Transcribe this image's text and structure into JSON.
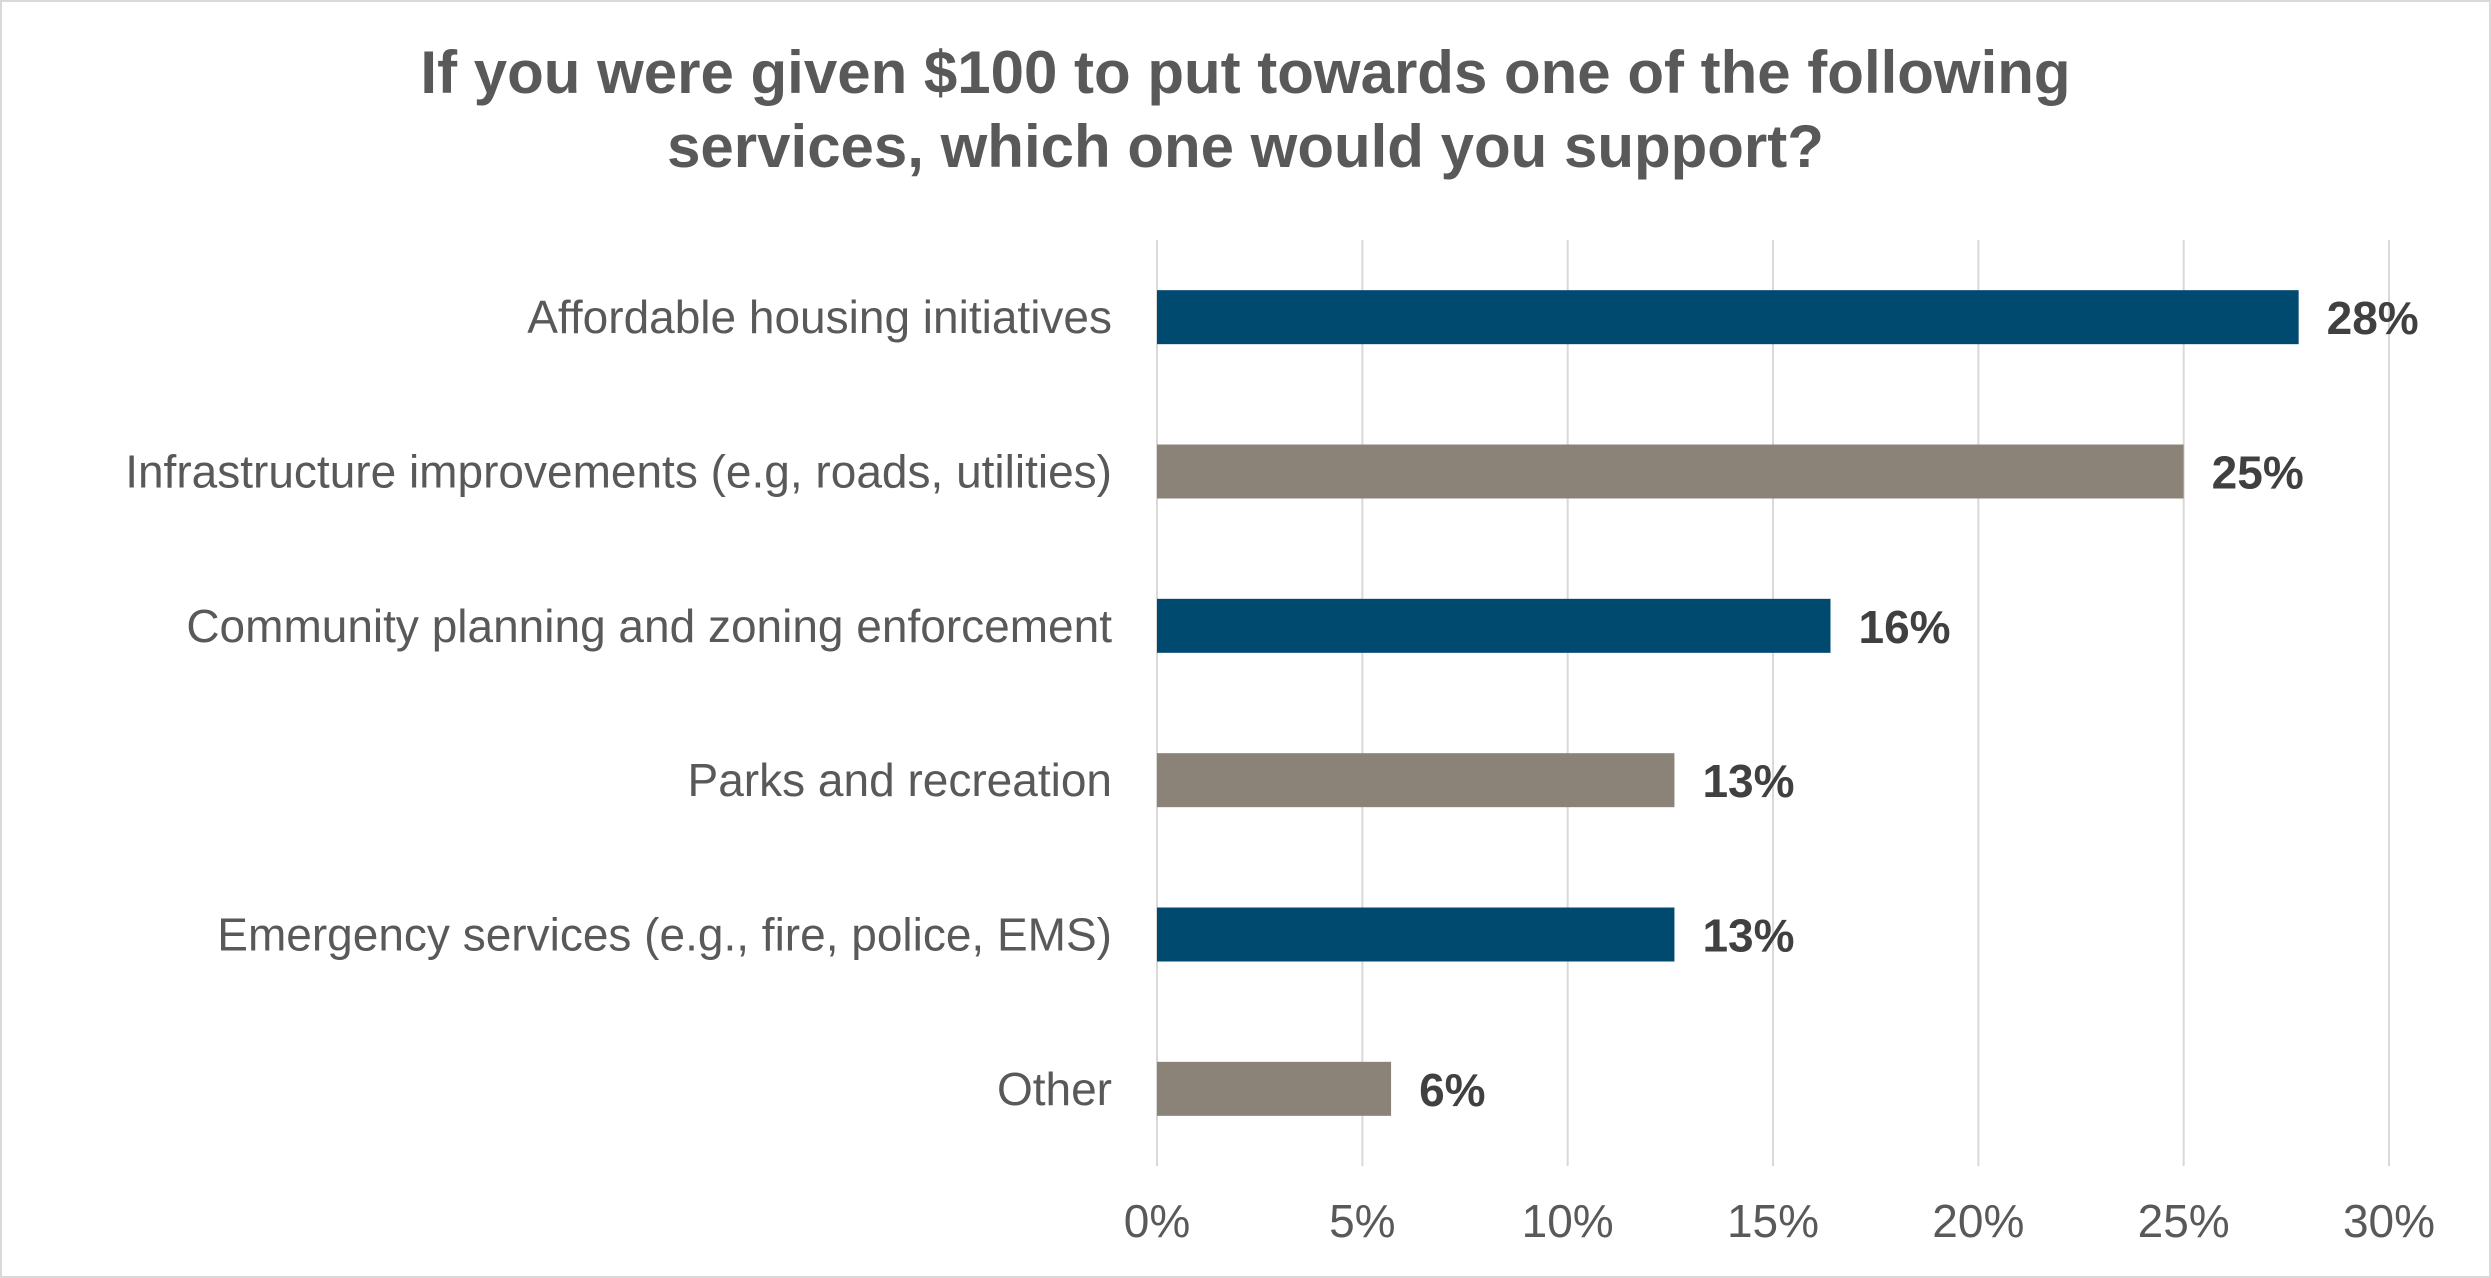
{
  "chart_data": {
    "type": "bar",
    "orientation": "horizontal",
    "title_lines": [
      "If you were given $100 to put towards one of the following",
      "services, which one would you support?"
    ],
    "categories": [
      "Affordable housing initiatives",
      "Infrastructure improvements (e.g, roads, utilities)",
      "Community planning and zoning enforcement",
      "Parks and recreation",
      "Emergency services (e.g., fire, police, EMS)",
      "Other"
    ],
    "values": [
      27.8,
      25.0,
      16.4,
      12.6,
      12.6,
      5.7
    ],
    "data_labels": [
      "28%",
      "25%",
      "16%",
      "13%",
      "13%",
      "6%"
    ],
    "bar_colors": [
      "#004a70",
      "#8c8378",
      "#004a70",
      "#8c8378",
      "#004a70",
      "#8c8378"
    ],
    "xlim": [
      0,
      30
    ],
    "xticks": [
      0,
      5,
      10,
      15,
      20,
      25,
      30
    ],
    "xtick_labels": [
      "0%",
      "5%",
      "10%",
      "15%",
      "20%",
      "25%",
      "30%"
    ],
    "xlabel": "",
    "ylabel": "",
    "grid": "vertical",
    "legend": "none"
  }
}
